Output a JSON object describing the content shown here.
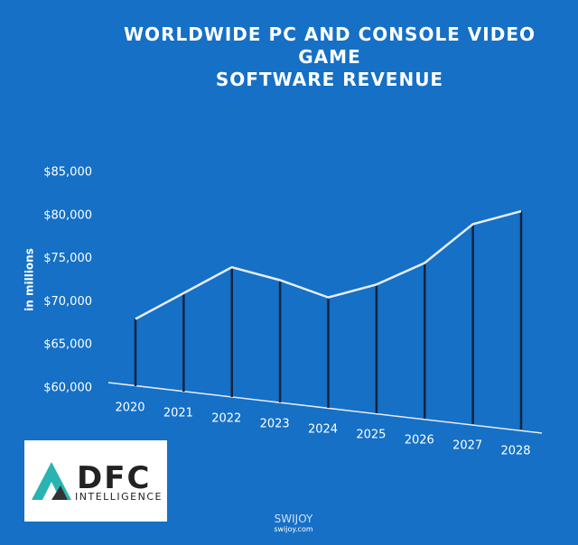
{
  "chart_data": {
    "type": "line",
    "title": "WORLDWIDE PC AND CONSOLE VIDEO\nGAME\nSOFTWARE REVENUE",
    "y_label": "in millions",
    "categories": [
      "2020",
      "2021",
      "2022",
      "2023",
      "2024",
      "2025",
      "2026",
      "2027",
      "2028"
    ],
    "values": [
      68000,
      71000,
      74000,
      72500,
      70500,
      72000,
      74500,
      79000,
      80500
    ],
    "ylim": [
      60000,
      85000
    ],
    "yticks": [
      {
        "value": 60000,
        "label": "$60,000"
      },
      {
        "value": 65000,
        "label": "$65,000"
      },
      {
        "value": 70000,
        "label": "$70,000"
      },
      {
        "value": 75000,
        "label": "$75,000"
      },
      {
        "value": 80000,
        "label": "$80,000"
      },
      {
        "value": 85000,
        "label": "$85,000"
      }
    ],
    "line_color": "#e8ecf2",
    "drop_color": "#15233f"
  },
  "logo": {
    "text": "DFC",
    "subtext": "INTELLIGENCE"
  },
  "watermark": {
    "text": "SWIJOY",
    "url": "swijoy.com"
  }
}
